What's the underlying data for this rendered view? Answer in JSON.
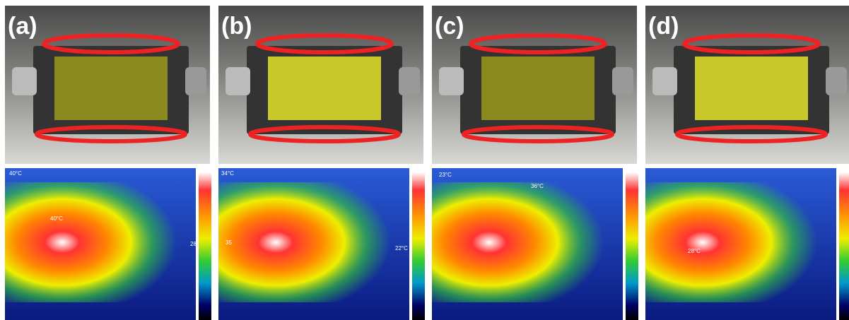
{
  "panels": [
    {
      "label": "(a)",
      "thermal_labels": [
        "40°C",
        "40°C",
        "28"
      ]
    },
    {
      "label": "(b)",
      "thermal_labels": [
        "34°C",
        "35",
        "22°C"
      ]
    },
    {
      "label": "(c)",
      "thermal_labels": [
        "23°C",
        "36°C"
      ]
    },
    {
      "label": "(d)",
      "thermal_labels": [
        "28°C"
      ]
    }
  ]
}
